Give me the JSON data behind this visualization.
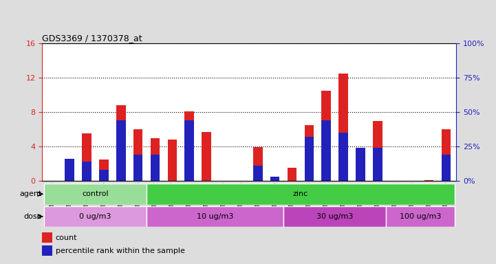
{
  "title": "GDS3369 / 1370378_at",
  "samples": [
    "GSM280163",
    "GSM280164",
    "GSM280165",
    "GSM280166",
    "GSM280167",
    "GSM280168",
    "GSM280169",
    "GSM280170",
    "GSM280171",
    "GSM280172",
    "GSM280173",
    "GSM280174",
    "GSM280175",
    "GSM280176",
    "GSM280177",
    "GSM280178",
    "GSM280179",
    "GSM280180",
    "GSM280181",
    "GSM280182",
    "GSM280183",
    "GSM280184",
    "GSM280185",
    "GSM280186"
  ],
  "count_values": [
    0,
    0.7,
    5.5,
    2.5,
    8.8,
    6.0,
    5.0,
    4.8,
    8.1,
    5.7,
    0,
    0,
    3.9,
    0.2,
    1.5,
    6.5,
    10.5,
    12.5,
    0,
    7.0,
    0,
    0,
    0.1,
    6.0
  ],
  "percentile_values": [
    0,
    16,
    14,
    8,
    44,
    19,
    19,
    0,
    44,
    0,
    0,
    0,
    11,
    3,
    0,
    32,
    44,
    35,
    24,
    24,
    0,
    0,
    0,
    19
  ],
  "ylim_left": [
    0,
    16
  ],
  "ylim_right": [
    0,
    100
  ],
  "yticks_left": [
    0,
    4,
    8,
    12,
    16
  ],
  "yticks_right": [
    0,
    25,
    50,
    75,
    100
  ],
  "count_color": "#dd2222",
  "percentile_color": "#2222bb",
  "agent_groups": [
    {
      "label": "control",
      "start": 0,
      "end": 5,
      "color": "#99dd99"
    },
    {
      "label": "zinc",
      "start": 6,
      "end": 23,
      "color": "#44cc44"
    }
  ],
  "dose_groups": [
    {
      "label": "0 ug/m3",
      "start": 0,
      "end": 5,
      "color": "#dd99dd"
    },
    {
      "label": "10 ug/m3",
      "start": 6,
      "end": 13,
      "color": "#cc66cc"
    },
    {
      "label": "30 ug/m3",
      "start": 14,
      "end": 19,
      "color": "#bb44bb"
    },
    {
      "label": "100 ug/m3",
      "start": 20,
      "end": 23,
      "color": "#cc66cc"
    }
  ],
  "bg_color": "#dddddd",
  "plot_bg": "#ffffff",
  "legend_count_label": "count",
  "legend_percentile_label": "percentile rank within the sample"
}
